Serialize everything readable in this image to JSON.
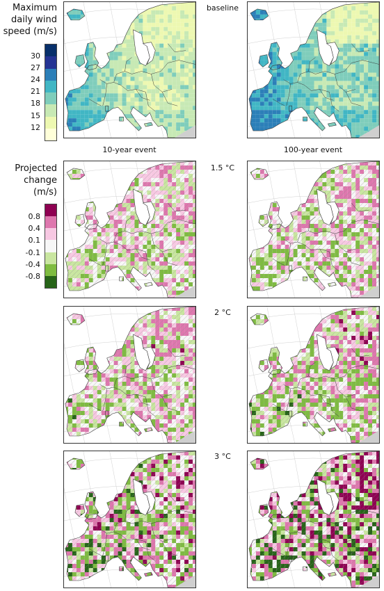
{
  "legend_top": {
    "title_lines": [
      "Maximum",
      "daily wind",
      "speed (m/s)"
    ],
    "ticks": [
      "30",
      "27",
      "24",
      "21",
      "18",
      "15",
      "12"
    ],
    "colors": [
      "#08306b",
      "#253494",
      "#2c7fb8",
      "#41b6c4",
      "#7fcdbb",
      "#c7e9b4",
      "#edf8b1",
      "#ffffd9"
    ]
  },
  "legend_bottom": {
    "title_lines": [
      "Projected",
      "change",
      "(m/s)"
    ],
    "ticks": [
      "0.8",
      "0.4",
      "0.1",
      "-0.1",
      "-0.4",
      "-0.8"
    ],
    "colors": [
      "#8e0152",
      "#de77ae",
      "#f7c8e2",
      "#f7f7f7",
      "#c9e6a0",
      "#7fbc41",
      "#276419"
    ]
  },
  "row_labels": {
    "baseline": "baseline",
    "r15": "1.5 °C",
    "r2": "2 °C",
    "r3": "3 °C"
  },
  "column_labels": {
    "left": "10-year event",
    "right": "100-year event"
  },
  "map_style": {
    "sea": "#ffffff",
    "graticule": "#cfcfcf",
    "border": "#3a3a3a"
  }
}
